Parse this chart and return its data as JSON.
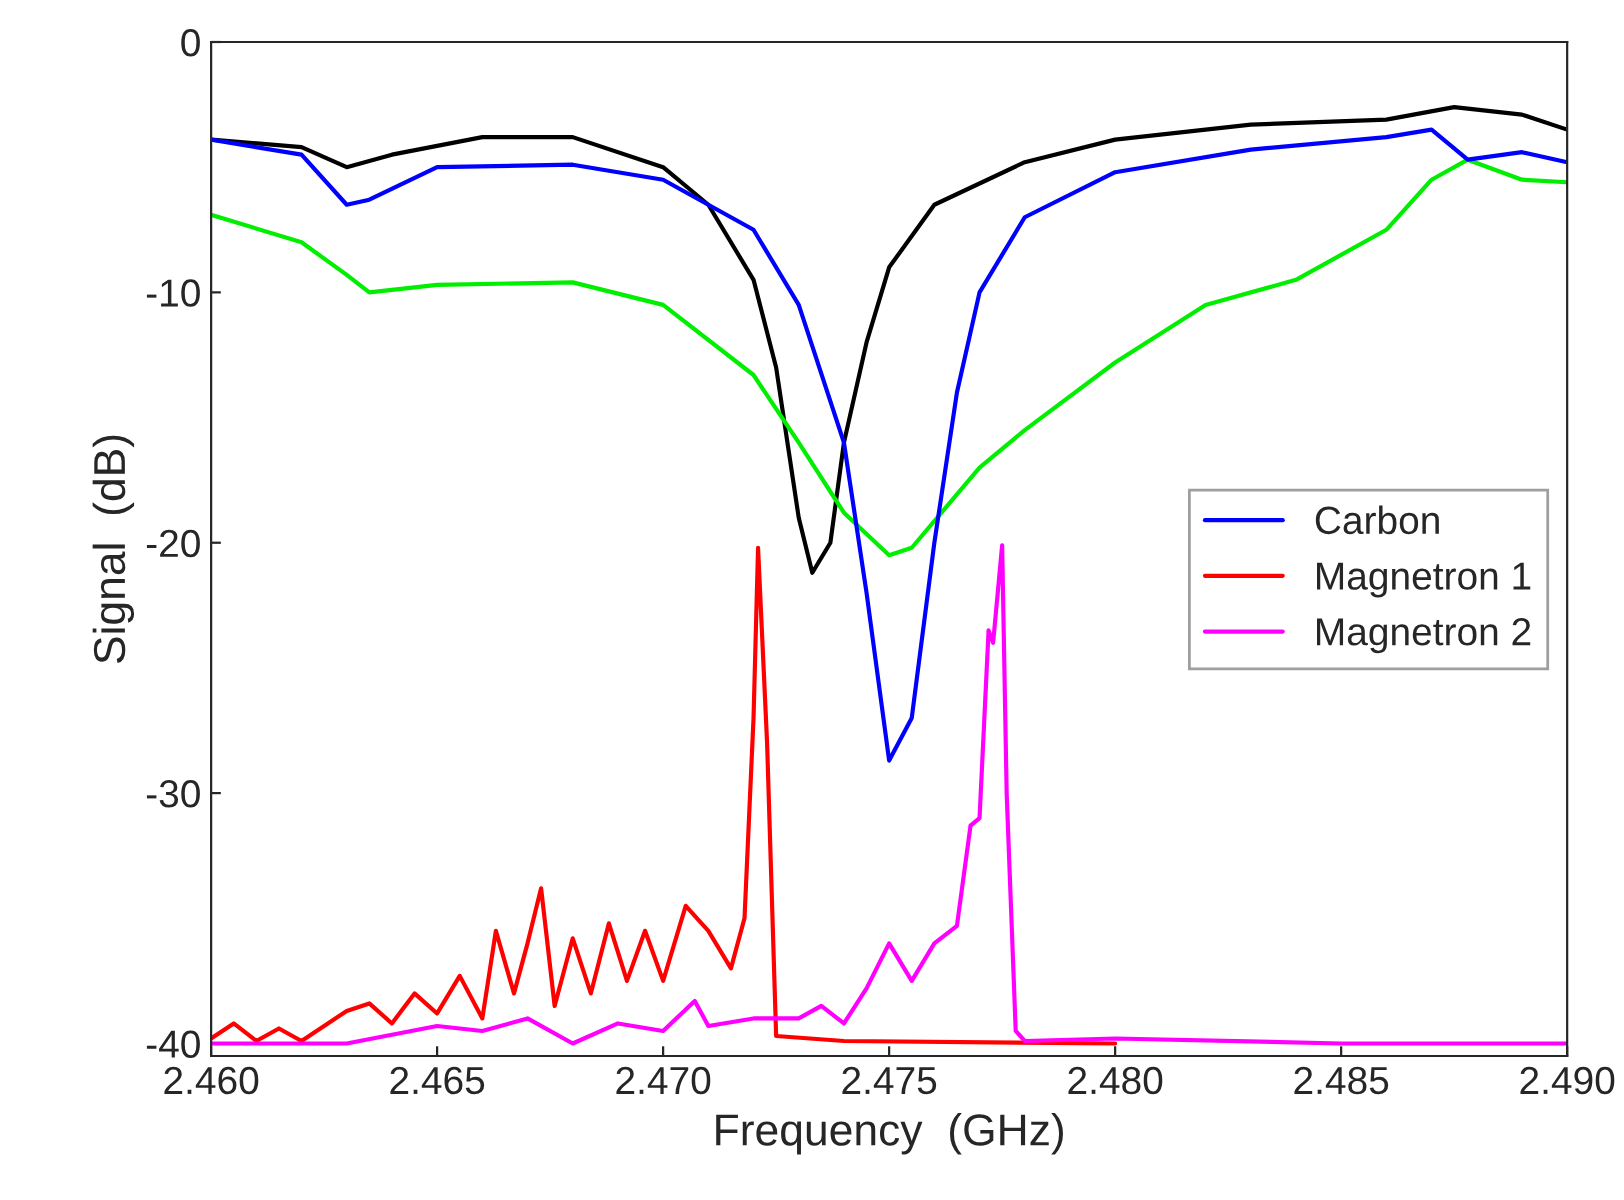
{
  "chart_data": {
    "type": "line",
    "xlabel": "Frequency  (GHz)",
    "ylabel": "Signal  (dB)",
    "xlim": [
      2.46,
      2.49
    ],
    "xticks": [
      {
        "value": 2.46,
        "label": "2.460"
      },
      {
        "value": 2.465,
        "label": "2.465"
      },
      {
        "value": 2.47,
        "label": "2.470"
      },
      {
        "value": 2.475,
        "label": "2.475"
      },
      {
        "value": 2.48,
        "label": "2.480"
      },
      {
        "value": 2.485,
        "label": "2.485"
      },
      {
        "value": 2.49,
        "label": "2.490"
      }
    ],
    "ylim": [
      -40.5,
      0
    ],
    "yticks": [
      -40,
      -30,
      -20,
      -10,
      0
    ],
    "grid": false,
    "legend": "right",
    "marker": "none",
    "line_style": "solid",
    "series": [
      {
        "color": "#000000",
        "x": [
          2.46,
          2.462,
          2.463,
          2.464,
          2.466,
          2.468,
          2.47,
          2.471,
          2.472,
          2.4725,
          2.473,
          2.4733,
          2.4737,
          2.474,
          2.4745,
          2.475,
          2.476,
          2.478,
          2.48,
          2.483,
          2.486,
          2.4875,
          2.489,
          2.49
        ],
        "values": [
          -3.9,
          -4.2,
          -5.0,
          -4.5,
          -3.8,
          -3.8,
          -5.0,
          -6.5,
          -9.5,
          -13,
          -19,
          -21.2,
          -20,
          -16,
          -12,
          -9,
          -6.5,
          -4.8,
          -3.9,
          -3.3,
          -3.1,
          -2.6,
          -2.9,
          -3.5
        ]
      },
      {
        "color": "#00ee00",
        "x": [
          2.46,
          2.462,
          2.463,
          2.4635,
          2.465,
          2.468,
          2.47,
          2.472,
          2.473,
          2.474,
          2.475,
          2.4755,
          2.477,
          2.478,
          2.48,
          2.482,
          2.484,
          2.486,
          2.487,
          2.4878,
          2.489,
          2.49
        ],
        "values": [
          -6.9,
          -8.0,
          -9.3,
          -10,
          -9.7,
          -9.6,
          -10.5,
          -13.3,
          -16,
          -18.8,
          -20.5,
          -20.2,
          -17,
          -15.5,
          -12.8,
          -10.5,
          -9.5,
          -7.5,
          -5.5,
          -4.7,
          -5.5,
          -5.6
        ]
      },
      {
        "name": "Carbon",
        "color": "#0000ff",
        "x": [
          2.46,
          2.462,
          2.463,
          2.4635,
          2.465,
          2.468,
          2.47,
          2.472,
          2.473,
          2.474,
          2.4745,
          2.475,
          2.4755,
          2.476,
          2.4765,
          2.477,
          2.478,
          2.48,
          2.483,
          2.486,
          2.487,
          2.4878,
          2.489,
          2.49
        ],
        "values": [
          -3.9,
          -4.5,
          -6.5,
          -6.3,
          -5.0,
          -4.9,
          -5.5,
          -7.5,
          -10.5,
          -16,
          -22,
          -28.7,
          -27,
          -20,
          -14,
          -10,
          -7,
          -5.2,
          -4.3,
          -3.8,
          -3.5,
          -4.7,
          -4.4,
          -4.8
        ]
      },
      {
        "name": "Magnetron 1",
        "color": "#ff0000",
        "x": [
          2.46,
          2.4605,
          2.461,
          2.4615,
          2.462,
          2.4625,
          2.463,
          2.4635,
          2.464,
          2.4645,
          2.465,
          2.4655,
          2.466,
          2.4663,
          2.4667,
          2.467,
          2.4673,
          2.4676,
          2.468,
          2.4684,
          2.4688,
          2.4692,
          2.4696,
          2.47,
          2.4705,
          2.471,
          2.4715,
          2.4718,
          2.472,
          2.4721,
          2.4723,
          2.4725,
          2.474,
          2.48
        ],
        "values": [
          -39.8,
          -39.2,
          -39.9,
          -39.4,
          -39.9,
          -39.3,
          -38.7,
          -38.4,
          -39.2,
          -38.0,
          -38.8,
          -37.3,
          -39,
          -35.5,
          -38,
          -36,
          -33.8,
          -38.5,
          -35.8,
          -38,
          -35.2,
          -37.5,
          -35.5,
          -37.5,
          -34.5,
          -35.5,
          -37,
          -35,
          -27,
          -20.2,
          -28,
          -39.7,
          -39.9,
          -40
        ]
      },
      {
        "name": "Magnetron 2",
        "color": "#ff00ff",
        "x": [
          2.46,
          2.463,
          2.465,
          2.466,
          2.467,
          2.468,
          2.469,
          2.47,
          2.4707,
          2.471,
          2.472,
          2.473,
          2.4735,
          2.474,
          2.4745,
          2.475,
          2.4755,
          2.476,
          2.4765,
          2.4768,
          2.477,
          2.4772,
          2.4773,
          2.4775,
          2.4776,
          2.4778,
          2.478,
          2.48,
          2.485,
          2.49
        ],
        "values": [
          -40,
          -40,
          -39.3,
          -39.5,
          -39,
          -40,
          -39.2,
          -39.5,
          -38.3,
          -39.3,
          -39,
          -39,
          -38.5,
          -39.2,
          -37.8,
          -36,
          -37.5,
          -36,
          -35.3,
          -31.3,
          -31,
          -23.5,
          -24,
          -20.1,
          -30,
          -39.5,
          -39.9,
          -39.8,
          -40,
          -40
        ]
      }
    ]
  }
}
